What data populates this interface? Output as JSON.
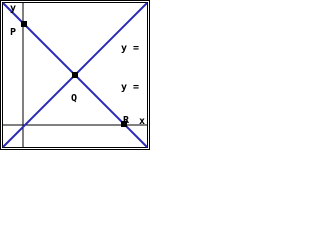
{
  "axes": {
    "x": "x",
    "y": "y"
  },
  "points": [
    {
      "label": "P"
    },
    {
      "label": "Q"
    },
    {
      "label": "R"
    }
  ],
  "equations": [
    "y =",
    "y ="
  ]
}
